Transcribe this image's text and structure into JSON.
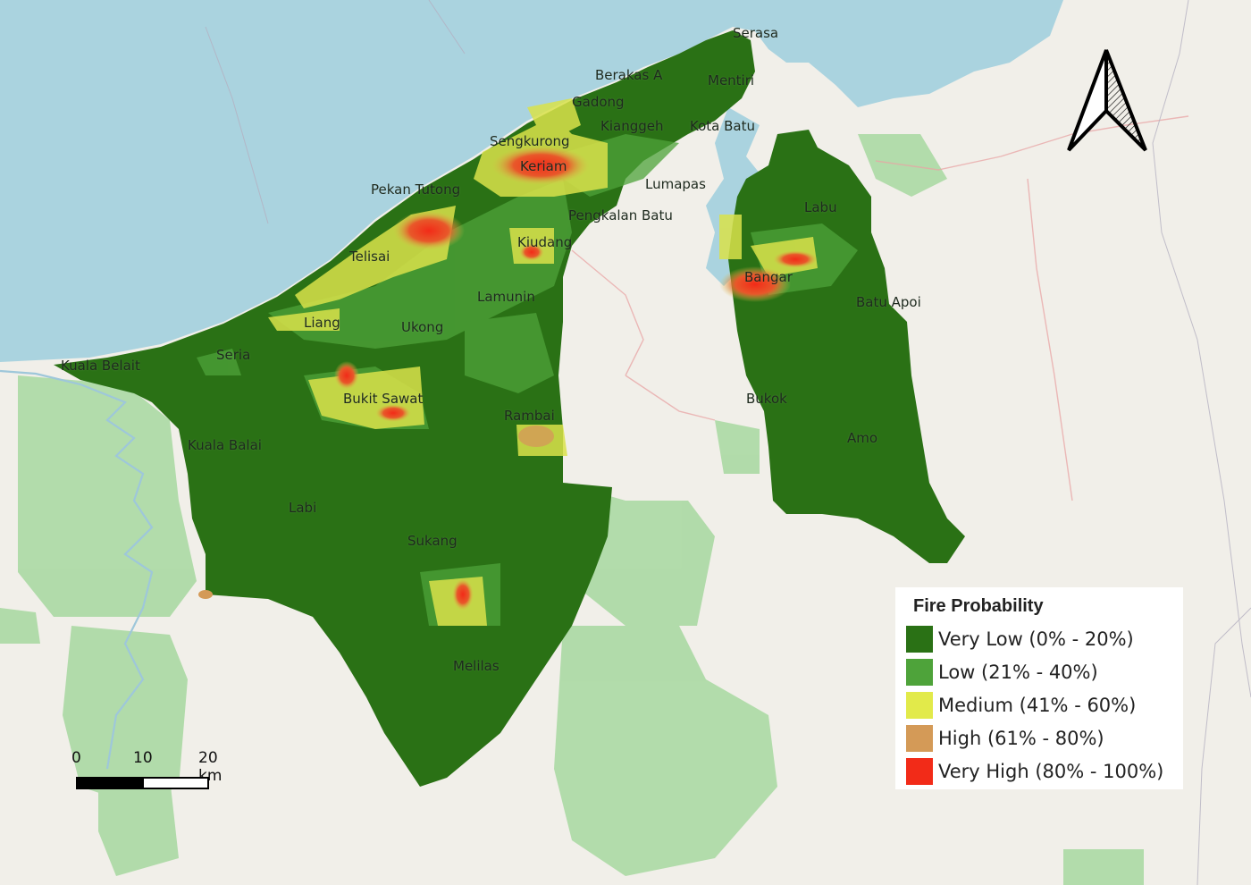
{
  "map": {
    "places": [
      {
        "id": "serasa",
        "label": "Serasa"
      },
      {
        "id": "berakas-a",
        "label": "Berakas A"
      },
      {
        "id": "mentiri",
        "label": "Mentiri"
      },
      {
        "id": "gadong",
        "label": "Gadong"
      },
      {
        "id": "kianggeh",
        "label": "Kianggeh"
      },
      {
        "id": "kota-batu",
        "label": "Kota Batu"
      },
      {
        "id": "sengkurong",
        "label": "Sengkurong"
      },
      {
        "id": "keriam",
        "label": "Keriam"
      },
      {
        "id": "pekan-tutong",
        "label": "Pekan Tutong"
      },
      {
        "id": "lumapas",
        "label": "Lumapas"
      },
      {
        "id": "pengkalan-batu",
        "label": "Pengkalan Batu"
      },
      {
        "id": "labu",
        "label": "Labu"
      },
      {
        "id": "kiudang",
        "label": "Kiudang"
      },
      {
        "id": "telisai",
        "label": "Telisai"
      },
      {
        "id": "bangar",
        "label": "Bangar"
      },
      {
        "id": "lamunin",
        "label": "Lamunin"
      },
      {
        "id": "batu-apoi",
        "label": "Batu Apoi"
      },
      {
        "id": "liang",
        "label": "Liang"
      },
      {
        "id": "ukong",
        "label": "Ukong"
      },
      {
        "id": "seria",
        "label": "Seria"
      },
      {
        "id": "kuala-belait",
        "label": "Kuala Belait"
      },
      {
        "id": "bukit-sawat",
        "label": "Bukit Sawat"
      },
      {
        "id": "bukok",
        "label": "Bukok"
      },
      {
        "id": "rambai",
        "label": "Rambai"
      },
      {
        "id": "amo",
        "label": "Amo"
      },
      {
        "id": "kuala-balai",
        "label": "Kuala Balai"
      },
      {
        "id": "labi",
        "label": "Labi"
      },
      {
        "id": "sukang",
        "label": "Sukang"
      },
      {
        "id": "melilas",
        "label": "Melilas"
      }
    ]
  },
  "legend": {
    "title": "Fire Probability",
    "classes": [
      {
        "label": "Very Low (0% - 20%)",
        "color": "#2a7115"
      },
      {
        "label": "Low (21% - 40%)",
        "color": "#4ea33a"
      },
      {
        "label": "Medium (41% - 60%)",
        "color": "#e2ea4a"
      },
      {
        "label": "High (61% - 80%)",
        "color": "#d49a57"
      },
      {
        "label": "Very High (80% - 100%)",
        "color": "#f22b18"
      }
    ]
  },
  "scalebar": {
    "ticks": [
      "0",
      "10",
      "20 km"
    ]
  },
  "north_arrow": {
    "icon": "north-arrow-icon"
  },
  "colors": {
    "sea": "#aad3df",
    "land": "#f1efe9",
    "forest_reserve": "#a7d8a0"
  }
}
